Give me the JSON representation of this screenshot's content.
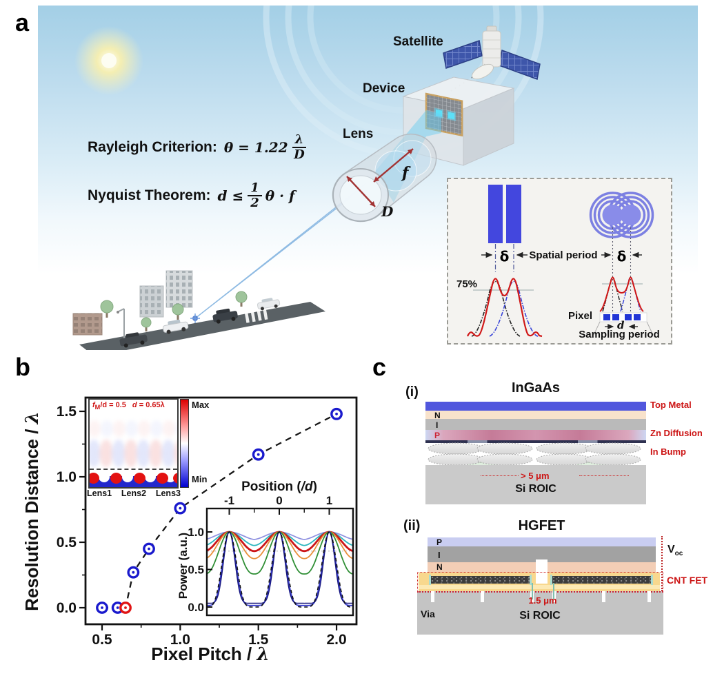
{
  "figure": {
    "panel_a_label": "a",
    "panel_b_label": "b",
    "panel_c_label": "c"
  },
  "panel_a": {
    "equations": {
      "rayleigh_label": "Rayleigh Criterion:",
      "rayleigh_body": "θ = 1.22",
      "rayleigh_num": "λ",
      "rayleigh_den": "D",
      "nyquist_label": "Nyquist Theorem:",
      "nyquist_body": "d ≤",
      "nyquist_num": "1",
      "nyquist_den": "2",
      "nyquist_tail": "θ · f"
    },
    "labels": {
      "satellite": "Satellite",
      "device": "Device",
      "lens": "Lens",
      "focal_length": "f",
      "aperture": "D"
    },
    "inset": {
      "delta": "δ",
      "spatial_period": "Spatial period",
      "contrast": "75%",
      "pixel": "Pixel",
      "pixel_pitch": "d",
      "sampling_period": "Sampling period"
    }
  },
  "panel_b": {
    "y_title": "Resolution Distance / ",
    "y_title_italic": "λ",
    "x_title": "Pixel Pitch / ",
    "x_title_italic": "λ",
    "heatmap": {
      "ann_f": "f",
      "ann_sub": "M",
      "ann_rest": "/d = 0.5",
      "ann_d": "d",
      "ann_val": " = 0.65λ",
      "max": "Max",
      "min": "Min",
      "lens_labels": [
        "Lens1",
        "Lens2",
        "Lens3"
      ]
    },
    "power": {
      "title_pre": "Position (",
      "title_italic": "/d",
      "title_post": ")",
      "ylabel": "Power (a.u.)"
    }
  },
  "panel_c": {
    "i": {
      "tag": "(i)",
      "title": "InGaAs",
      "layer_n": "N",
      "layer_i": "I",
      "layer_p": "P",
      "top_metal": "Top Metal",
      "zn_diffusion": "Zn Diffusion",
      "in_bump": "In Bump",
      "pitch_note": "> 5 μm",
      "substrate": "Si ROIC"
    },
    "ii": {
      "tag": "(ii)",
      "title": "HGFET",
      "layer_p": "P",
      "layer_i": "I",
      "layer_n": "N",
      "voc_main": "V",
      "voc_sub": "oc",
      "cnt_fet": "CNT FET",
      "gap_note": "1.5 μm",
      "via": "Via",
      "substrate": "Si ROIC"
    }
  },
  "chart_data": [
    {
      "type": "scatter",
      "xlabel": "Pixel Pitch / λ",
      "ylabel": "Resolution Distance / λ",
      "x_ticks": [
        "0.5",
        "1.0",
        "1.5",
        "2.0"
      ],
      "y_ticks": [
        "0.0",
        "0.5",
        "1.0",
        "1.5"
      ],
      "xlim": [
        0.39,
        2.14
      ],
      "ylim": [
        -0.12,
        1.59
      ],
      "connector": "dashed",
      "points": [
        {
          "x": 0.5,
          "y": 0.0,
          "color": "blue"
        },
        {
          "x": 0.6,
          "y": 0.0,
          "color": "blue"
        },
        {
          "x": 0.65,
          "y": 0.0,
          "color": "red"
        },
        {
          "x": 0.7,
          "y": 0.27,
          "color": "blue"
        },
        {
          "x": 0.8,
          "y": 0.45,
          "color": "blue"
        },
        {
          "x": 1.0,
          "y": 0.76,
          "color": "blue"
        },
        {
          "x": 1.5,
          "y": 1.17,
          "color": "blue"
        },
        {
          "x": 2.0,
          "y": 1.48,
          "color": "blue"
        }
      ]
    },
    {
      "type": "line",
      "title": "Position (/d)",
      "ylabel": "Power (a.u.)",
      "x_ticks": [
        "-1",
        "0",
        "1"
      ],
      "y_ticks": [
        "1.0",
        "0.5",
        "0.0"
      ],
      "xlim": [
        -1.45,
        1.48
      ],
      "ylim": [
        -0.12,
        1.32
      ],
      "reference_line_y": 0.745,
      "series": [
        {
          "name": "curve_1",
          "color": "#8d8fe0",
          "valley": 0.9,
          "width": 1.7
        },
        {
          "name": "curve_2",
          "color": "#2ab5bd",
          "valley": 0.82,
          "width": 1.8
        },
        {
          "name": "curve_3",
          "color": "#cc1518",
          "valley": 0.745,
          "width": 2.8
        },
        {
          "name": "curve_4",
          "color": "#e8903a",
          "valley": 0.645,
          "width": 1.8
        },
        {
          "name": "curve_5",
          "color": "#2f8f35",
          "valley": 0.44,
          "width": 1.8
        },
        {
          "name": "curve_6",
          "color": "#3a3fd0",
          "valley": 0.02,
          "width": 1.8
        },
        {
          "name": "curve_7",
          "color": "#15157f",
          "valley": 0.05,
          "width": 1.4
        },
        {
          "name": "curve_8",
          "color": "#111111",
          "valley": 0.0,
          "width": 1.6,
          "dash": "5,4"
        }
      ]
    }
  ]
}
